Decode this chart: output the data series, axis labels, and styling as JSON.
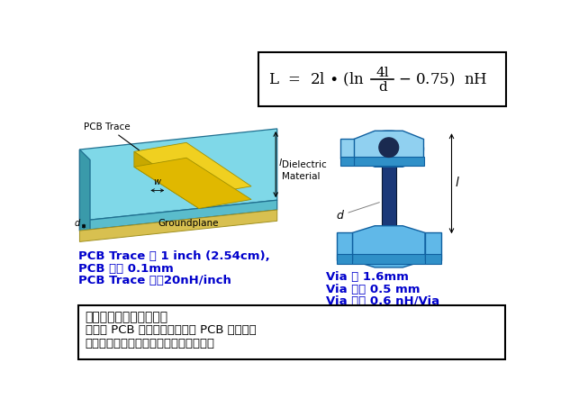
{
  "bg_color": "#ffffff",
  "cyan_light": "#7fdfdf",
  "cyan_top": "#7fd8e8",
  "cyan_side_front": "#5abccc",
  "cyan_side_bottom": "#3a9aaa",
  "gold_top": "#f0d020",
  "gold_side": "#c8a800",
  "gold_front": "#e0b800",
  "dark_blue_via": "#1a3878",
  "via_cap_top": "#60b8e8",
  "via_cap_side": "#3090c8",
  "via_cap_light": "#90d0f0",
  "pcb_trace_label": "PCB Trace",
  "dielectric_label": "Dielectric\nMaterial",
  "groundplane_label": "Groundplane",
  "left_info_line1": "PCB Trace 长 1 inch (2.54cm),",
  "left_info_line2": "PCB 层厚 0.1mm",
  "left_info_line3": "PCB Trace 约亇20nH/inch",
  "right_info_line1": "Via 高 1.6mm",
  "right_info_line2": "Via 直径 0.5 mm",
  "right_info_line3": "Via 约为 0.6 nH/Via",
  "bottom_title": "电源步版基本要点之七：",
  "bottom_line1": "要减小 PCB 走线的电感，减小 PCB 走线长度",
  "bottom_line2": "要减小ＰＣＢ过孔的电感，放置多个过孔",
  "text_blue": "#0000cc",
  "text_black": "#000000"
}
